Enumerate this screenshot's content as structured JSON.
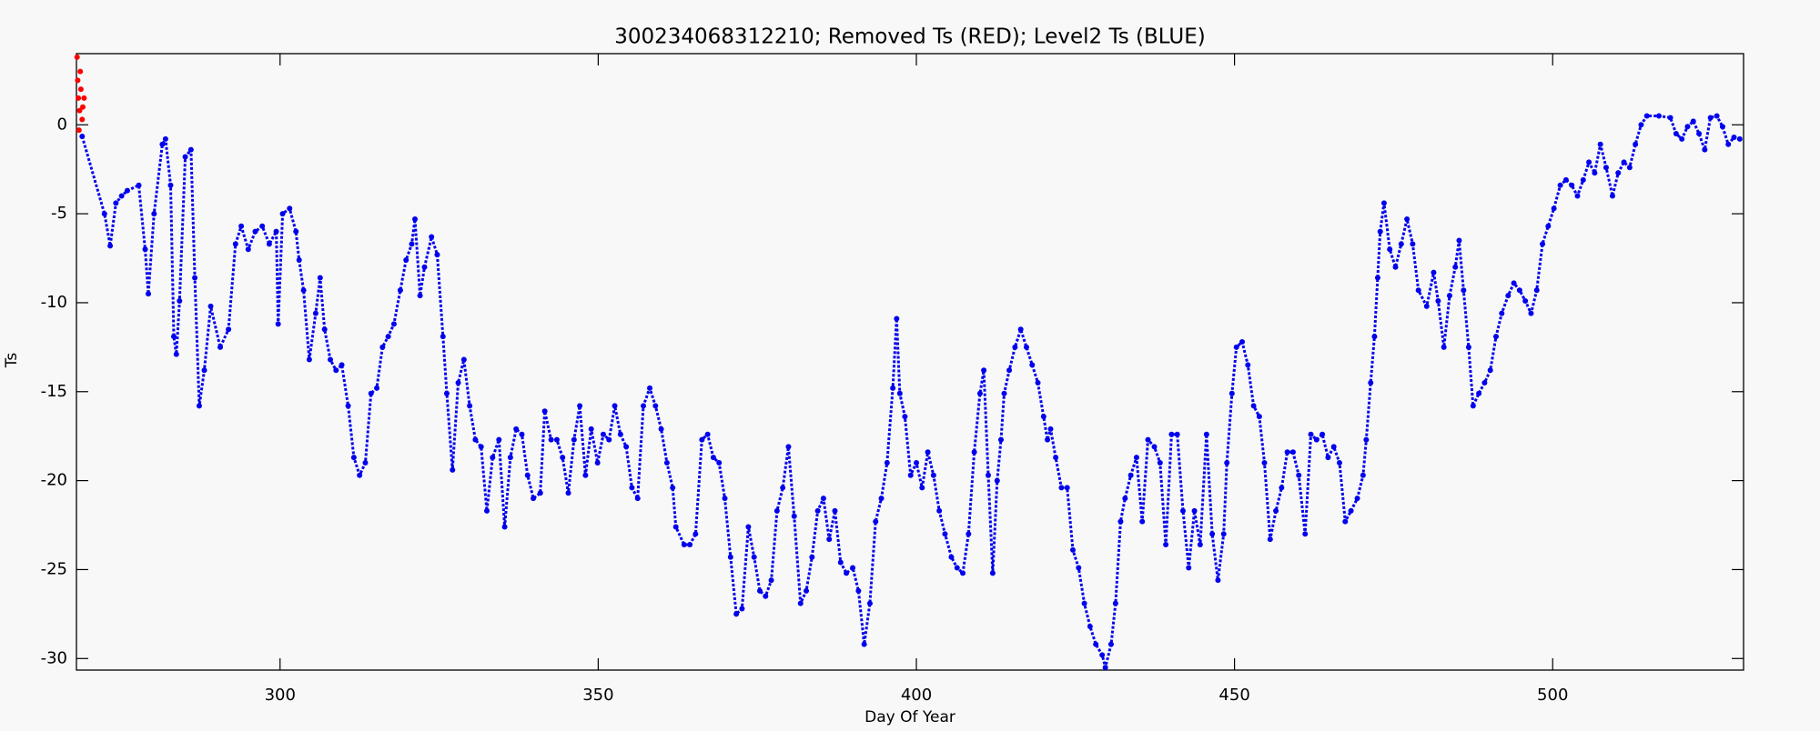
{
  "chart_data": {
    "type": "scatter",
    "title": "300234068312210; Removed Ts (RED); Level2 Ts (BLUE)",
    "x_label": "Day Of Year",
    "y_label": "Ts",
    "xlim": [
      268,
      530
    ],
    "ylim": [
      -30.65,
      4
    ],
    "xticks": [
      300,
      350,
      400,
      450,
      500
    ],
    "yticks": [
      -30,
      -25,
      -20,
      -15,
      -10,
      -5,
      0
    ],
    "grid": false,
    "series": [
      {
        "color": "#ff0000",
        "x": [
          268.1,
          268.2,
          268.3,
          268.4,
          268.5,
          268.6,
          268.7,
          268.9,
          269.0,
          269.2
        ],
        "values": [
          3.8,
          2.5,
          1.5,
          -0.3,
          0.8,
          3.0,
          2.0,
          0.3,
          1.0,
          1.5
        ]
      },
      {
        "color": "#0000ee",
        "x": [
          268.9,
          272.4,
          273.3,
          274.2,
          275.1,
          276.0,
          277.8,
          278.8,
          279.3,
          280.2,
          281.5,
          282.0,
          282.8,
          283.3,
          283.7,
          284.2,
          285.1,
          286.0,
          286.6,
          287.3,
          288.1,
          289.1,
          290.6,
          291.9,
          293.0,
          293.9,
          295.0,
          296.1,
          297.2,
          298.3,
          299.4,
          299.7,
          300.4,
          301.5,
          302.5,
          303.0,
          303.7,
          304.6,
          305.6,
          306.3,
          307.0,
          307.9,
          308.8,
          309.7,
          310.7,
          311.6,
          312.5,
          313.4,
          314.3,
          315.2,
          316.1,
          317.0,
          317.9,
          318.9,
          319.8,
          320.7,
          321.2,
          322.0,
          322.7,
          323.8,
          324.7,
          325.6,
          326.2,
          327.1,
          328.0,
          328.9,
          329.8,
          330.7,
          331.6,
          332.5,
          333.4,
          334.4,
          335.3,
          336.2,
          337.1,
          338.0,
          338.9,
          339.8,
          340.9,
          341.6,
          342.6,
          343.5,
          344.4,
          345.3,
          346.2,
          347.1,
          348.0,
          348.9,
          349.9,
          350.8,
          351.7,
          352.6,
          353.5,
          354.4,
          355.3,
          356.2,
          357.1,
          358.1,
          359.0,
          359.9,
          360.8,
          361.7,
          362.2,
          363.5,
          364.4,
          365.3,
          366.3,
          367.2,
          368.1,
          369.0,
          369.9,
          370.8,
          371.7,
          372.6,
          373.6,
          374.5,
          375.4,
          376.3,
          377.2,
          378.1,
          379.0,
          379.9,
          380.8,
          381.8,
          382.7,
          383.6,
          384.5,
          385.4,
          386.3,
          387.2,
          388.1,
          389.0,
          390.0,
          390.9,
          391.8,
          392.7,
          393.6,
          394.5,
          395.4,
          396.3,
          396.9,
          397.4,
          398.2,
          399.1,
          400.0,
          400.9,
          401.8,
          402.7,
          403.6,
          404.5,
          405.5,
          406.4,
          407.3,
          408.2,
          409.1,
          410.0,
          410.6,
          411.3,
          412.0,
          412.7,
          413.3,
          413.8,
          414.6,
          415.5,
          416.4,
          417.3,
          418.2,
          419.1,
          420.0,
          420.6,
          421.1,
          421.9,
          422.8,
          423.7,
          424.6,
          425.5,
          426.4,
          427.3,
          428.2,
          429.2,
          429.7,
          430.6,
          431.3,
          432.1,
          432.8,
          433.7,
          434.6,
          435.5,
          436.4,
          437.4,
          438.3,
          439.2,
          440.1,
          441.0,
          441.9,
          442.8,
          443.7,
          444.6,
          445.6,
          446.5,
          447.4,
          448.3,
          448.8,
          449.6,
          450.3,
          451.2,
          452.1,
          453.0,
          453.9,
          454.7,
          455.6,
          456.5,
          457.4,
          458.3,
          459.2,
          460.1,
          461.1,
          462.0,
          462.9,
          463.8,
          464.7,
          465.6,
          466.5,
          467.4,
          468.3,
          469.3,
          470.2,
          470.7,
          471.4,
          472.0,
          472.5,
          472.9,
          473.5,
          474.4,
          475.3,
          476.2,
          477.1,
          478.0,
          478.9,
          480.2,
          481.3,
          482.0,
          482.9,
          483.8,
          484.7,
          485.3,
          486.0,
          486.8,
          487.5,
          488.4,
          489.3,
          490.2,
          491.1,
          492.0,
          493.0,
          493.9,
          494.8,
          495.7,
          496.6,
          497.5,
          498.4,
          499.3,
          500.2,
          501.2,
          502.1,
          503.0,
          503.9,
          504.8,
          505.7,
          506.6,
          507.5,
          508.4,
          509.4,
          510.3,
          511.2,
          512.1,
          513.0,
          513.9,
          514.8,
          516.7,
          518.5,
          519.4,
          520.3,
          521.2,
          522.1,
          523.0,
          523.9,
          524.8,
          525.8,
          526.7,
          527.6,
          528.5,
          529.4
        ],
        "values": [
          -0.65,
          -5.0,
          -6.8,
          -4.4,
          -4.0,
          -3.7,
          -3.4,
          -7.0,
          -9.5,
          -5.0,
          -1.1,
          -0.8,
          -3.4,
          -11.9,
          -12.9,
          -9.9,
          -1.8,
          -1.4,
          -8.6,
          -15.8,
          -13.8,
          -10.2,
          -12.5,
          -11.5,
          -6.7,
          -5.7,
          -7.0,
          -6.0,
          -5.7,
          -6.7,
          -6.0,
          -11.2,
          -5.0,
          -4.7,
          -6.0,
          -7.6,
          -9.3,
          -13.2,
          -10.6,
          -8.6,
          -11.5,
          -13.2,
          -13.8,
          -13.5,
          -15.8,
          -18.7,
          -19.7,
          -19.0,
          -15.1,
          -14.8,
          -12.5,
          -11.9,
          -11.2,
          -9.3,
          -7.6,
          -6.7,
          -5.3,
          -9.6,
          -8.0,
          -6.3,
          -7.3,
          -11.9,
          -15.1,
          -19.4,
          -14.5,
          -13.2,
          -15.8,
          -17.7,
          -18.1,
          -21.7,
          -18.7,
          -17.7,
          -22.6,
          -18.7,
          -17.1,
          -17.4,
          -19.7,
          -21.0,
          -20.7,
          -16.1,
          -17.7,
          -17.7,
          -18.7,
          -20.7,
          -17.7,
          -15.8,
          -19.7,
          -17.1,
          -19.0,
          -17.4,
          -17.7,
          -15.8,
          -17.4,
          -18.1,
          -20.4,
          -21.0,
          -15.8,
          -14.8,
          -15.8,
          -17.1,
          -19.0,
          -20.4,
          -22.6,
          -23.6,
          -23.6,
          -23.0,
          -17.7,
          -17.4,
          -18.7,
          -19.0,
          -21.0,
          -24.3,
          -27.5,
          -27.2,
          -22.6,
          -24.3,
          -26.2,
          -26.5,
          -25.6,
          -21.7,
          -20.4,
          -18.1,
          -22.0,
          -26.9,
          -26.2,
          -24.3,
          -21.7,
          -21.0,
          -23.3,
          -21.7,
          -24.6,
          -25.2,
          -24.9,
          -26.2,
          -29.2,
          -26.9,
          -22.3,
          -21.0,
          -19.0,
          -14.8,
          -10.9,
          -15.1,
          -16.4,
          -19.7,
          -19.0,
          -20.4,
          -18.4,
          -19.7,
          -21.7,
          -23.0,
          -24.3,
          -24.9,
          -25.2,
          -23.0,
          -18.4,
          -15.1,
          -13.8,
          -19.7,
          -25.2,
          -20.0,
          -17.7,
          -15.1,
          -13.8,
          -12.5,
          -11.5,
          -12.5,
          -13.5,
          -14.5,
          -16.4,
          -17.7,
          -17.1,
          -18.7,
          -20.4,
          -20.4,
          -23.9,
          -24.9,
          -26.9,
          -28.2,
          -29.2,
          -29.8,
          -30.5,
          -29.2,
          -26.9,
          -22.3,
          -21.0,
          -19.7,
          -18.7,
          -22.3,
          -17.7,
          -18.1,
          -19.0,
          -23.6,
          -17.4,
          -17.4,
          -21.7,
          -24.9,
          -21.7,
          -23.6,
          -17.4,
          -23.0,
          -25.6,
          -23.0,
          -19.0,
          -15.1,
          -12.5,
          -12.2,
          -13.5,
          -15.8,
          -16.4,
          -19.0,
          -23.3,
          -21.7,
          -20.4,
          -18.4,
          -18.4,
          -19.7,
          -23.0,
          -17.4,
          -17.7,
          -17.4,
          -18.7,
          -18.1,
          -19.0,
          -22.3,
          -21.7,
          -21.0,
          -19.7,
          -17.7,
          -14.5,
          -11.9,
          -8.6,
          -6.0,
          -4.4,
          -7.0,
          -8.0,
          -6.7,
          -5.3,
          -6.7,
          -9.3,
          -10.2,
          -8.3,
          -9.9,
          -12.5,
          -9.6,
          -8.0,
          -6.5,
          -9.3,
          -12.5,
          -15.8,
          -15.1,
          -14.5,
          -13.8,
          -11.9,
          -10.6,
          -9.6,
          -8.9,
          -9.3,
          -9.9,
          -10.6,
          -9.3,
          -6.7,
          -5.7,
          -4.7,
          -3.4,
          -3.1,
          -3.4,
          -4.0,
          -3.1,
          -2.1,
          -2.7,
          -1.1,
          -2.4,
          -4.0,
          -2.7,
          -2.1,
          -2.4,
          -1.1,
          0,
          0.5,
          0.5,
          0.4,
          -0.5,
          -0.8,
          -0.1,
          0.2,
          -0.5,
          -1.4,
          0.4,
          0.5,
          -0.1,
          -1.1,
          -0.7,
          -0.8
        ]
      }
    ]
  }
}
